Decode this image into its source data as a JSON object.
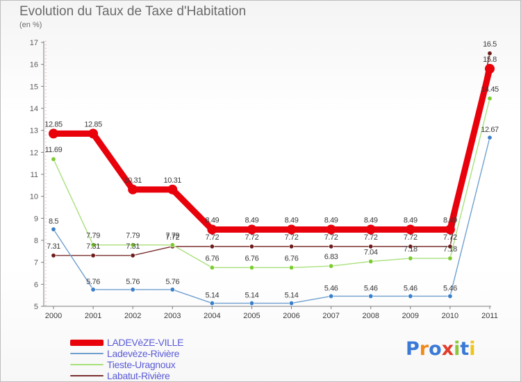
{
  "title": "Evolution du Taux de Taxe d'Habitation",
  "unit_label": "(en %)",
  "brand": {
    "text": "Proxiti",
    "letter_colors": [
      "#3a7ad6",
      "#f08a1c",
      "#3a7ad6",
      "#e23c2a",
      "#8cc63f",
      "#3a7ad6",
      "#f0c419"
    ]
  },
  "chart_data": {
    "type": "line",
    "x": [
      "2000",
      "2001",
      "2002",
      "2003",
      "2004",
      "2005",
      "2006",
      "2007",
      "2008",
      "2009",
      "2010",
      "2011"
    ],
    "ylim": [
      5,
      17
    ],
    "yticks": [
      "5",
      "6",
      "7",
      "8",
      "9",
      "10",
      "11",
      "12",
      "13",
      "14",
      "15",
      "16",
      "17"
    ],
    "grid": false,
    "legend_position": "bottom-left",
    "series": [
      {
        "name": "LADEVèZE-VILLE",
        "color": "#e8000b",
        "point_color": "#e8000b",
        "values": [
          12.85,
          12.85,
          10.31,
          10.31,
          8.49,
          8.49,
          8.49,
          8.49,
          8.49,
          8.49,
          8.49,
          15.8
        ],
        "labels": [
          "12.85",
          "12.85",
          "10.31",
          "10.31",
          "8.49",
          "8.49",
          "8.49",
          "8.49",
          "8.49",
          "8.49",
          "8.49",
          "15.8"
        ]
      },
      {
        "name": "Ladevèze-Rivière",
        "color": "#6f9fcf",
        "point_color": "#3a7fc9",
        "values": [
          8.5,
          5.76,
          5.76,
          5.76,
          5.14,
          5.14,
          5.14,
          5.46,
          5.46,
          5.46,
          5.46,
          12.67
        ],
        "labels": [
          "8.5",
          "5.76",
          "5.76",
          "5.76",
          "5.14",
          "5.14",
          "5.14",
          "5.46",
          "5.46",
          "5.46",
          "5.46",
          "12.67"
        ]
      },
      {
        "name": "Tieste-Uragnoux",
        "color": "#a8e07a",
        "point_color": "#7ccb2e",
        "values": [
          11.69,
          7.79,
          7.79,
          7.79,
          6.76,
          6.76,
          6.76,
          6.83,
          7.04,
          7.18,
          7.18,
          14.45
        ],
        "labels": [
          "11.69",
          "7.79",
          "7.79",
          "7.79",
          "6.76",
          "6.76",
          "6.76",
          "6.83",
          "7.04",
          "7.18",
          "7.18",
          "14.45"
        ]
      },
      {
        "name": "Labatut-Rivière",
        "color": "#7a2e2e",
        "point_color": "#6e1a1a",
        "values": [
          7.31,
          7.31,
          7.31,
          7.72,
          7.72,
          7.72,
          7.72,
          7.72,
          7.72,
          7.72,
          7.72,
          16.5
        ],
        "labels": [
          "7.31",
          "7.31",
          "7.31",
          "7.72",
          "7.72",
          "7.72",
          "7.72",
          "7.72",
          "7.72",
          "7.72",
          "7.72",
          "16.5"
        ]
      }
    ]
  }
}
